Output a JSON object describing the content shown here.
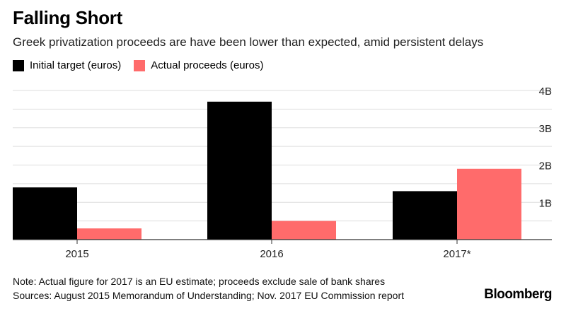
{
  "header": {
    "title": "Falling Short",
    "subtitle": "Greek privatization proceeds are have been lower than expected, amid persistent delays"
  },
  "footer": {
    "note": "Note: Actual figure for 2017 is an EU estimate; proceeds exclude sale of bank shares",
    "sources": "Sources: August 2015 Memorandum of Understanding; Nov. 2017 EU Commission report",
    "brand": "Bloomberg"
  },
  "colors": {
    "initial_target": "#000000",
    "actual_proceeds": "#ff6b6b",
    "gridline": "#dddddd",
    "axis": "#333333"
  },
  "chart_data": {
    "type": "bar",
    "title": "Falling Short",
    "subtitle": "Greek privatization proceeds are have been lower than expected, amid persistent delays",
    "categories": [
      "2015",
      "2016",
      "2017*"
    ],
    "series": [
      {
        "name": "Initial target (euros)",
        "values": [
          1.4,
          3.7,
          1.3
        ]
      },
      {
        "name": "Actual proceeds (euros)",
        "values": [
          0.3,
          0.5,
          1.9
        ]
      }
    ],
    "units": "billion euros",
    "ylim": [
      0,
      4
    ],
    "yticks": [
      1,
      2,
      3,
      4
    ],
    "ytick_labels": [
      "1B",
      "2B",
      "3B",
      "4B"
    ],
    "yaxis_position": "right",
    "grid": true,
    "legend": "top-left"
  }
}
